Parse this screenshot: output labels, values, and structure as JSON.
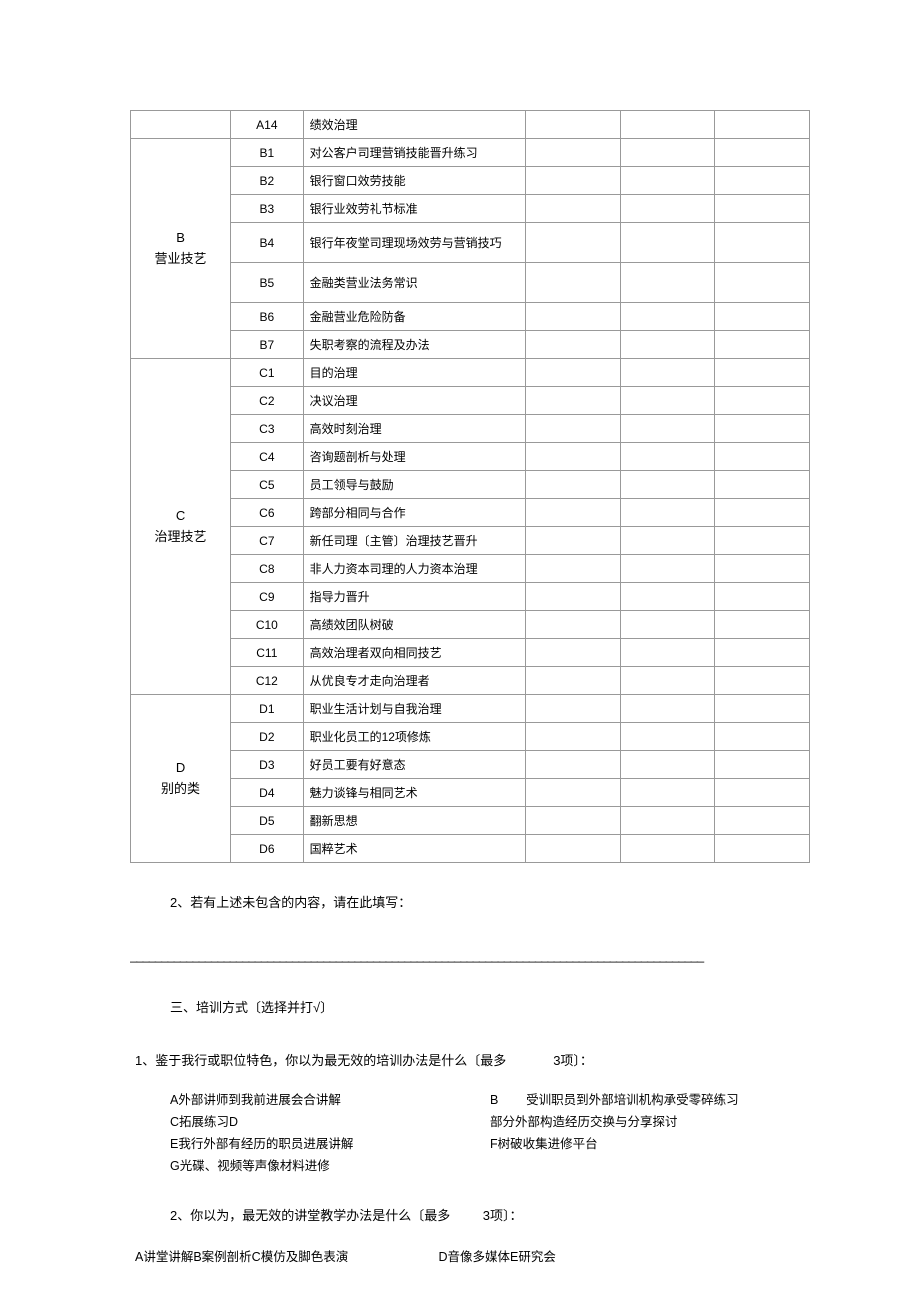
{
  "table": {
    "columns": {
      "category_width": 105,
      "code_width": 75,
      "name_width": 235,
      "blank_count": 3,
      "blank_width": 100
    },
    "border_color": "#999999",
    "font_size": 12,
    "groups": [
      {
        "category": "",
        "rows": [
          {
            "code": "A14",
            "name": "绩效治理",
            "tall": false
          }
        ]
      },
      {
        "category": "B\n营业技艺",
        "rows": [
          {
            "code": "B1",
            "name": "对公客户司理营销技能晋升练习",
            "tall": false
          },
          {
            "code": "B2",
            "name": "银行窗口效劳技能",
            "tall": false
          },
          {
            "code": "B3",
            "name": "银行业效劳礼节标准",
            "tall": false
          },
          {
            "code": "B4",
            "name": "银行年夜堂司理现场效劳与营销技巧",
            "tall": true
          },
          {
            "code": "B5",
            "name": "金融类营业法务常识",
            "tall": true
          },
          {
            "code": "B6",
            "name": "金融营业危险防备",
            "tall": false
          },
          {
            "code": "B7",
            "name": "失职考察的流程及办法",
            "tall": false
          }
        ]
      },
      {
        "category": "C\n治理技艺",
        "rows": [
          {
            "code": "C1",
            "name": "目的治理",
            "tall": false
          },
          {
            "code": "C2",
            "name": "决议治理",
            "tall": false
          },
          {
            "code": "C3",
            "name": "高效时刻治理",
            "tall": false
          },
          {
            "code": "C4",
            "name": "咨询题剖析与处理",
            "tall": false
          },
          {
            "code": "C5",
            "name": "员工领导与鼓励",
            "tall": false
          },
          {
            "code": "C6",
            "name": "跨部分相同与合作",
            "tall": false
          },
          {
            "code": "C7",
            "name": "新任司理〔主管〕治理技艺晋升",
            "tall": false
          },
          {
            "code": "C8",
            "name": "非人力资本司理的人力资本治理",
            "tall": false
          },
          {
            "code": "C9",
            "name": "指导力晋升",
            "tall": false
          },
          {
            "code": "C10",
            "name": "高绩效团队树破",
            "tall": false
          },
          {
            "code": "C11",
            "name": "高效治理者双向相同技艺",
            "tall": false
          },
          {
            "code": "C12",
            "name": "从优良专才走向治理者",
            "tall": false
          }
        ]
      },
      {
        "category": "D\n别的类",
        "rows": [
          {
            "code": "D1",
            "name": "职业生活计划与自我治理",
            "tall": false
          },
          {
            "code": "D2",
            "name": "职业化员工的12项修炼",
            "tall": false
          },
          {
            "code": "D3",
            "name": "好员工要有好意态",
            "tall": false
          },
          {
            "code": "D4",
            "name": "魅力谈锋与相同艺术",
            "tall": false
          },
          {
            "code": "D5",
            "name": "翻新思想",
            "tall": false
          },
          {
            "code": "D6",
            "name": "国粹艺术",
            "tall": false
          }
        ]
      }
    ]
  },
  "section2": {
    "q2_text": "2、若有上述未包含的内容，请在此填写：",
    "underline": "____________________________________________________________________________________________"
  },
  "section3": {
    "title": "三、培训方式〔选择并打√〕",
    "q1_text_a": "1、鉴于我行或职位特色，你以为最无效的培训办法是什么〔最多",
    "q1_text_b": "3项〕：",
    "q1_options": [
      {
        "left": "A外部讲师到我前进展会合讲解",
        "right_prefix": "B",
        "right": "受训职员到外部培训机构承受零碎练习"
      },
      {
        "left": "C拓展练习D",
        "right_prefix": "",
        "right": "部分外部构造经历交换与分享探讨"
      },
      {
        "left": "E我行外部有经历的职员进展讲解",
        "right_prefix": "",
        "right": "F树破收集进修平台"
      },
      {
        "left": "G光碟、视频等声像材料进修",
        "right_prefix": "",
        "right": ""
      }
    ],
    "q2_text_a": "2、你以为，最无效的讲堂教学办法是什么〔最多",
    "q2_text_b": "3项〕：",
    "q2_options_left": "A讲堂讲解B案例剖析C模仿及脚色表演",
    "q2_options_right": "D音像多媒体E研究会"
  }
}
